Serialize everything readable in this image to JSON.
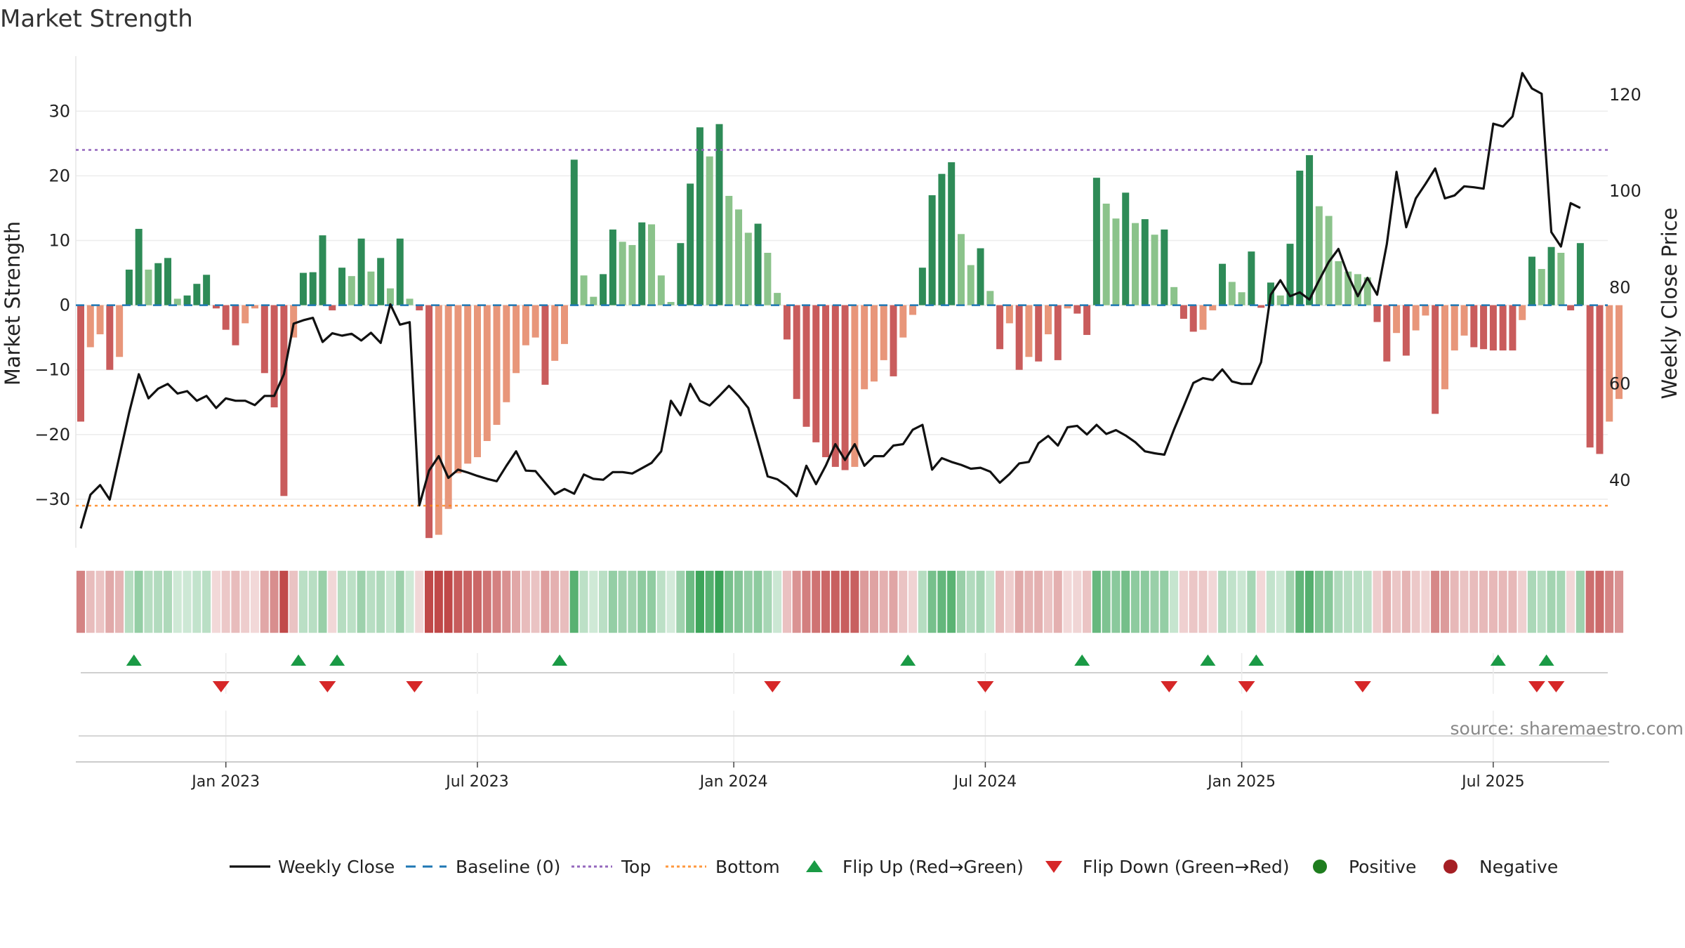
{
  "chart_data": {
    "type": "bar",
    "title": "Market Strength",
    "ylabel": "Market Strength",
    "y2label": "Weekly Close Price",
    "ylim": [
      -37.5,
      38.5
    ],
    "y2lim": [
      26,
      128
    ],
    "yticks": [
      {
        "v": 30,
        "label": "30"
      },
      {
        "v": 20,
        "label": "20"
      },
      {
        "v": 10,
        "label": "10"
      },
      {
        "v": 0,
        "label": "0"
      },
      {
        "v": -10,
        "label": "−10"
      },
      {
        "v": -20,
        "label": "−20"
      },
      {
        "v": -30,
        "label": "−30"
      }
    ],
    "y2ticks": [
      {
        "v": 120,
        "label": "120"
      },
      {
        "v": 100,
        "label": "100"
      },
      {
        "v": 80,
        "label": "80"
      },
      {
        "v": 60,
        "label": "60"
      },
      {
        "v": 40,
        "label": "40"
      }
    ],
    "xticks": [
      {
        "week": 15,
        "label": "Jan 2023"
      },
      {
        "week": 41,
        "label": "Jul 2023"
      },
      {
        "week": 67.5,
        "label": "Jan 2024"
      },
      {
        "week": 93.5,
        "label": "Jul 2024"
      },
      {
        "week": 120,
        "label": "Jan 2025"
      },
      {
        "week": 146,
        "label": "Jul 2025"
      }
    ],
    "strength_values": [
      -18,
      -6.5,
      -4.5,
      -10,
      -8,
      5.5,
      11.8,
      5.5,
      6.5,
      7.3,
      1,
      1.5,
      3.3,
      4.7,
      -0.5,
      -3.8,
      -6.2,
      -2.8,
      -0.5,
      -10.5,
      -15.8,
      -29.5,
      -5,
      5,
      5.1,
      10.8,
      -0.8,
      5.8,
      4.5,
      10.3,
      5.2,
      7.3,
      2.6,
      10.3,
      1,
      -0.8,
      -36,
      -35.5,
      -31.5,
      -26,
      -24.5,
      -23.5,
      -21,
      -18.5,
      -15,
      -10.5,
      -6.2,
      -5,
      -12.3,
      -8.6,
      -6,
      22.5,
      4.6,
      1.3,
      4.8,
      11.7,
      9.8,
      9.3,
      12.8,
      12.5,
      4.6,
      0.5,
      9.6,
      18.8,
      27.5,
      23,
      28,
      16.9,
      14.8,
      11.2,
      12.6,
      8.1,
      1.9,
      -5.3,
      -14.5,
      -18.8,
      -21.2,
      -23.5,
      -25,
      -25.5,
      -25,
      -13,
      -11.8,
      -8.5,
      -11,
      -5,
      -1.5,
      5.8,
      17,
      20.3,
      22.1,
      11,
      6.2,
      8.8,
      2.2,
      -6.8,
      -2.8,
      -10,
      -8,
      -8.7,
      -4.5,
      -8.5,
      -0.5,
      -1.3,
      -4.6,
      19.7,
      15.7,
      13.4,
      17.4,
      12.7,
      13.3,
      10.9,
      11.7,
      2.8,
      -2.1,
      -4.1,
      -3.8,
      -0.8,
      6.4,
      3.6,
      2,
      8.3,
      -0.4,
      3.5,
      1.5,
      9.5,
      20.8,
      23.2,
      15.3,
      13.8,
      6.8,
      5.2,
      4.8,
      4.3,
      -2.6,
      -8.7,
      -4.3,
      -7.8,
      -3.9,
      -1.6,
      -16.8,
      -13,
      -7,
      -4.7,
      -6.5,
      -6.8,
      -7,
      -7,
      -7,
      -2.3,
      7.5,
      5.6,
      9,
      8.1,
      -0.8,
      9.6,
      -22,
      -23,
      -18,
      -14.5
    ],
    "close_prices": [
      30,
      37,
      39,
      36,
      45,
      54,
      62,
      57,
      59,
      60,
      58,
      58.5,
      56.5,
      57.5,
      55,
      57,
      56.5,
      56.5,
      55.6,
      57.5,
      57.5,
      62,
      72.5,
      73.2,
      73.7,
      68.7,
      70.5,
      70,
      70.4,
      69,
      70.6,
      68.5,
      76.5,
      72.3,
      72.8,
      34.8,
      42,
      45,
      40.5,
      42.2,
      41.6,
      40.9,
      40.3,
      39.8,
      43,
      46,
      42,
      41.9,
      39.5,
      37.1,
      38.2,
      37.2,
      41.2,
      40.3,
      40.1,
      41.7,
      41.7,
      41.4,
      42.5,
      43.6,
      46,
      56.5,
      53.5,
      60,
      56.5,
      55.5,
      57.5,
      59.6,
      57.5,
      55,
      48,
      40.8,
      40.2,
      38.8,
      36.7,
      43,
      39.2,
      43,
      47.5,
      44.2,
      47.5,
      43,
      45,
      45,
      47.2,
      47.5,
      50.5,
      51.5,
      42.2,
      44.6,
      43.8,
      43.2,
      42.4,
      42.6,
      41.8,
      39.5,
      41.3,
      43.5,
      43.8,
      47.7,
      49.2,
      47.2,
      51,
      51.3,
      49.5,
      51.5,
      49.6,
      50.4,
      49.3,
      47.9,
      46,
      45.6,
      45.3,
      50.5,
      55.3,
      60.2,
      61.2,
      60.8,
      63,
      60.5,
      60,
      60,
      64.5,
      78.5,
      81.5,
      78.2,
      79,
      77.5,
      81.5,
      85.3,
      88,
      82.5,
      78.2,
      82,
      78.5,
      89,
      104,
      92.5,
      98.5,
      101.5,
      104.7,
      98.5,
      99.1,
      101,
      100.8,
      100.5,
      114,
      113.4,
      115.5,
      124.5,
      121.3,
      120.2,
      91.5,
      88.5,
      97.5,
      96.5
    ],
    "flips_up": [
      5.5,
      22.5,
      26.5,
      49.5,
      85.5,
      103.5,
      116.5,
      121.5,
      146.5,
      151.5
    ],
    "flips_down": [
      14.5,
      25.5,
      34.5,
      71.5,
      93.5,
      112.5,
      120.5,
      132.5,
      150.5,
      152.5
    ],
    "top_level": 24,
    "bottom_level": -31,
    "series": [
      {
        "name": "Weekly Close",
        "color": "#111111"
      },
      {
        "name": "Baseline (0)",
        "color": "#1f77b4"
      },
      {
        "name": "Top",
        "color": "#9467bd"
      },
      {
        "name": "Bottom",
        "color": "#ff7f0e"
      },
      {
        "name": "Flip Up (Red→Green)",
        "color": "#1a9a45"
      },
      {
        "name": "Flip Down (Green→Red)",
        "color": "#d62728"
      },
      {
        "name": "Positive",
        "color": "#1e7d1e"
      },
      {
        "name": "Negative",
        "color": "#a51f24"
      }
    ],
    "colors": {
      "strong_positive": "#2e8b57",
      "weak_positive": "#8bc38b",
      "strong_negative": "#c95c5c",
      "weak_negative": "#e8967a"
    },
    "grid": true,
    "legend_position": "bottom-center"
  },
  "source_text": "source: sharemaestro.com"
}
